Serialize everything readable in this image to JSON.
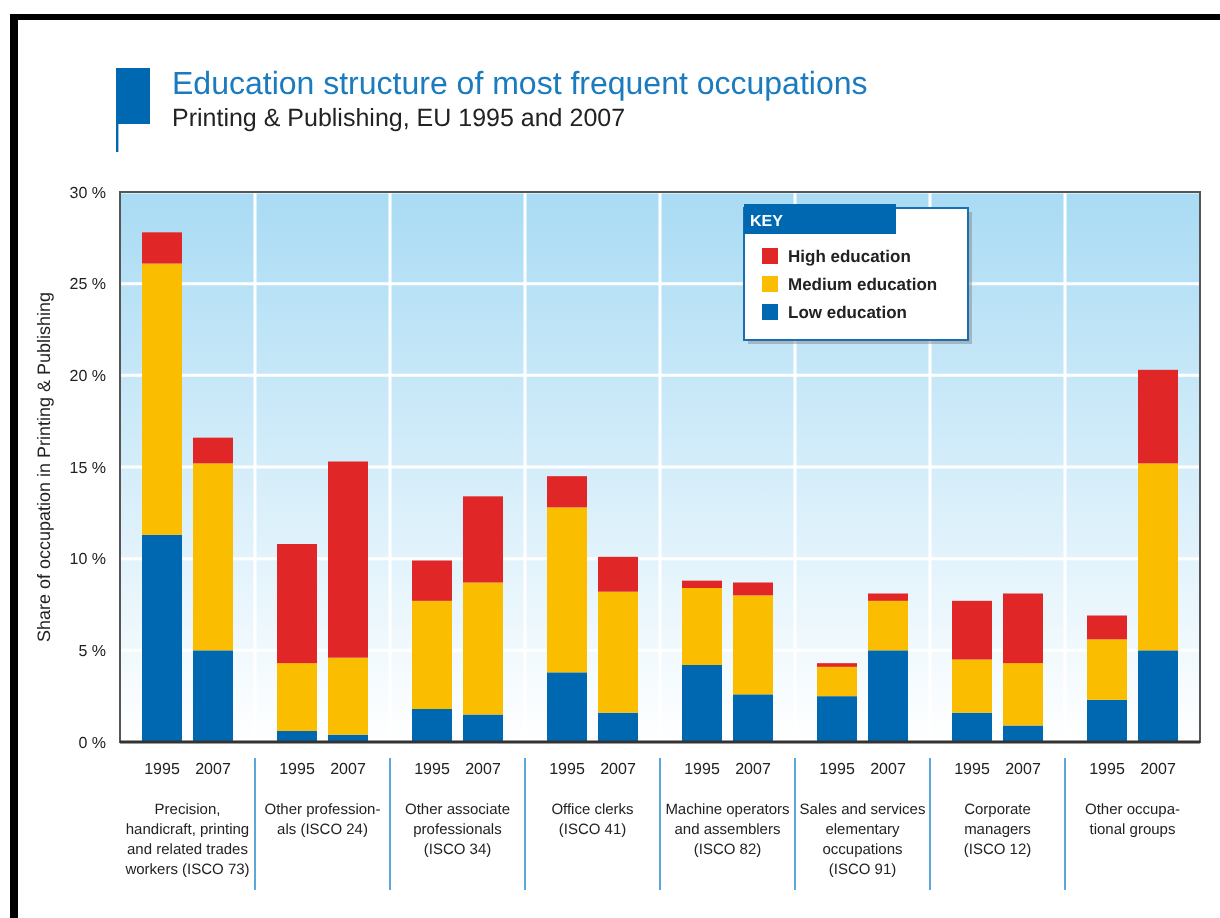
{
  "chart_data": {
    "type": "bar",
    "stacked": true,
    "title": "Education structure of most frequent occupations",
    "subtitle": "Printing & Publishing, EU 1995 and 2007",
    "ylabel": "Share of occupation in Printing & Publishing",
    "legend_title": "KEY",
    "legend": "top",
    "grid": true,
    "categories": [
      "1995",
      "2007",
      "1995",
      "2007",
      "1995",
      "2007",
      "1995",
      "2007",
      "1995",
      "2007",
      "1995",
      "2007",
      "1995",
      "2007",
      "1995",
      "2007"
    ],
    "annotations": [
      "Precision,\nhandicraft, printing\nand related trades\nworkers (ISCO 73)",
      "Other profession-\nals (ISCO 24)",
      "Other associate\nprofessionals\n(ISCO 34)",
      "Office clerks\n(ISCO 41)",
      "Machine operators\nand assemblers\n(ISCO 82)",
      "Sales and services\nelementary\noccupations\n(ISCO 91)",
      "Corporate\nmanagers\n(ISCO 12)",
      "Other occupa-\ntional groups"
    ],
    "ylim": [
      0,
      30
    ],
    "yticks": [
      {
        "value": 0,
        "label": "0 %"
      },
      {
        "value": 5,
        "label": "5 %"
      },
      {
        "value": 10,
        "label": "10 %"
      },
      {
        "value": 15,
        "label": "15 %"
      },
      {
        "value": 20,
        "label": "20 %"
      },
      {
        "value": 25,
        "label": "25 %"
      },
      {
        "value": 30,
        "label": "30 %"
      }
    ],
    "series": [
      {
        "name": "Low education",
        "color": "#0068b0",
        "values": [
          11.3,
          5.0,
          0.6,
          0.4,
          1.8,
          1.5,
          3.8,
          1.6,
          4.2,
          2.6,
          2.5,
          5.0,
          1.6,
          0.9,
          2.3,
          5.0
        ]
      },
      {
        "name": "Medium education",
        "color": "#fbbd00",
        "values": [
          14.8,
          10.2,
          3.7,
          4.2,
          5.9,
          7.2,
          9.0,
          6.6,
          4.2,
          5.4,
          1.6,
          2.7,
          2.9,
          3.4,
          3.3,
          10.2
        ]
      },
      {
        "name": "High education",
        "color": "#e02626",
        "values": [
          1.7,
          1.4,
          6.5,
          10.7,
          2.2,
          4.7,
          1.7,
          1.9,
          0.4,
          0.7,
          0.2,
          0.4,
          3.2,
          3.8,
          1.3,
          5.1
        ]
      }
    ]
  }
}
